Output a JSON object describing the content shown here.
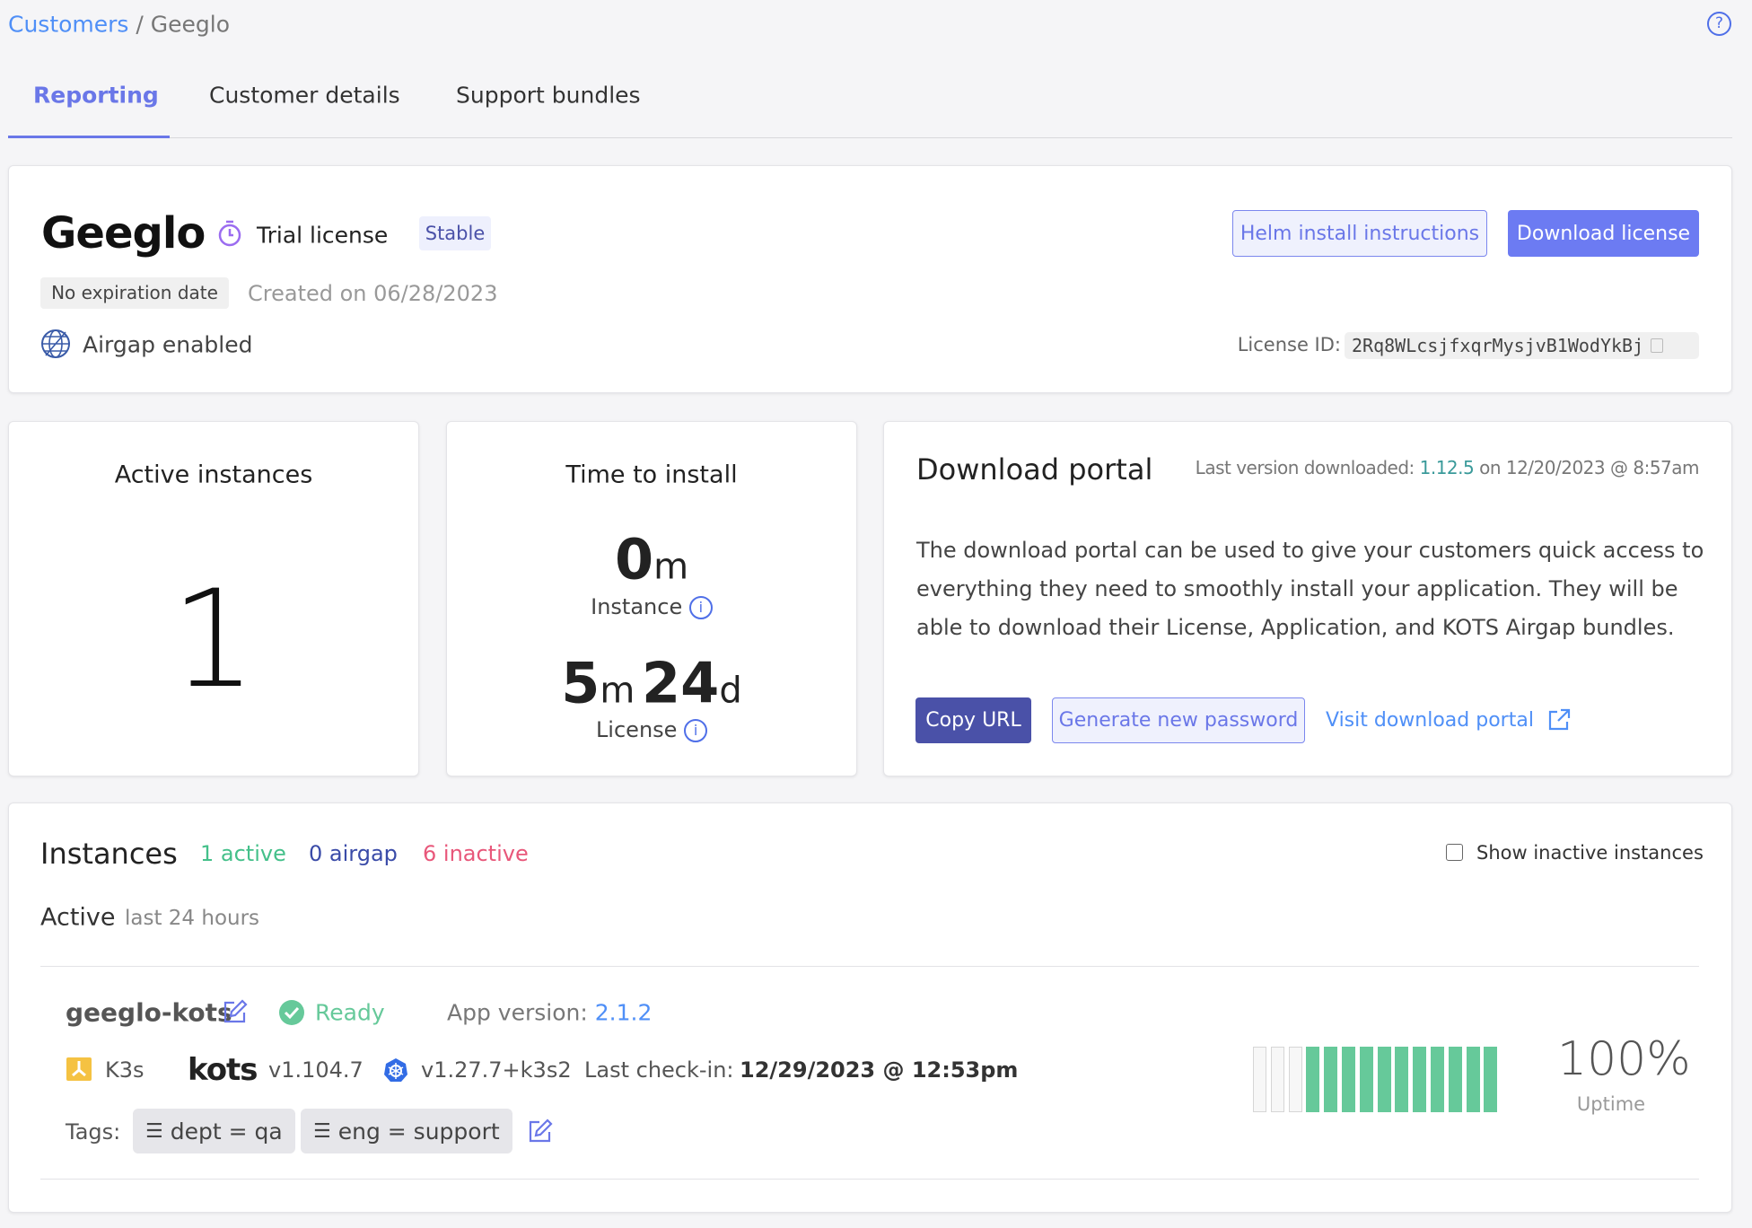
{
  "breadcrumb": {
    "parent": "Customers",
    "separator": " / ",
    "current": "Geeglo"
  },
  "tabs": [
    {
      "label": "Reporting",
      "active": true
    },
    {
      "label": "Customer details"
    },
    {
      "label": "Support bundles"
    }
  ],
  "customer": {
    "name": "Geeglo",
    "license_type": "Trial license",
    "channel": "Stable",
    "expiration": "No expiration date",
    "created": "Created on 06/28/2023",
    "airgap": "Airgap enabled",
    "license_id_label": "License ID:",
    "license_id": "2Rq8WLcsjfxqrMysjvB1WodYkBj",
    "helm_button": "Helm install instructions",
    "download_button": "Download license"
  },
  "active_instances": {
    "title": "Active instances",
    "value": "1"
  },
  "time_to_install": {
    "title": "Time to install",
    "instance_value": "0",
    "instance_unit": "m",
    "instance_label": "Instance",
    "license_value_m": "5",
    "license_unit_m": "m",
    "license_value_d": "24",
    "license_unit_d": "d",
    "license_label": "License"
  },
  "download_portal": {
    "title": "Download portal",
    "last_prefix": "Last version downloaded: ",
    "last_version": "1.12.5",
    "last_suffix": " on 12/20/2023 @ 8:57am",
    "description": "The download portal can be used to give your customers quick access to everything they need to smoothly install your application. They will be able to download their License, Application, and KOTS Airgap bundles.",
    "copy_url": "Copy URL",
    "generate_password": "Generate new password",
    "visit_portal": "Visit download portal"
  },
  "instances": {
    "title": "Instances",
    "active_count": "1 active",
    "airgap_count": "0 airgap",
    "inactive_count": "6 inactive",
    "show_inactive_label": "Show inactive instances",
    "show_inactive_checked": false,
    "section": "Active",
    "section_sub": "last 24 hours",
    "items": [
      {
        "name": "geeglo-kots",
        "status": "Ready",
        "app_version_label": "App version: ",
        "app_version": "2.1.2",
        "distribution": "K3s",
        "kots_logo": "kots",
        "kots_version": "v1.104.7",
        "k8s_version": "v1.27.7+k3s2",
        "checkin_label": "Last check-in:",
        "checkin": "12/29/2023 @ 12:53pm",
        "tags_label": "Tags:",
        "tags": [
          "dept = qa",
          "eng = support"
        ],
        "uptime": "100%",
        "uptime_label": "Uptime",
        "uptime_bars": [
          0,
          0,
          0,
          1,
          1,
          1,
          1,
          1,
          1,
          1,
          1,
          1,
          1,
          1
        ]
      }
    ]
  },
  "colors": {
    "accent": "#6c7bf2",
    "link": "#4f8ff7",
    "green": "#66c99a",
    "inactive": "#e8577a",
    "airgap": "#3a4ba8",
    "copy_button": "#4a51a8"
  }
}
